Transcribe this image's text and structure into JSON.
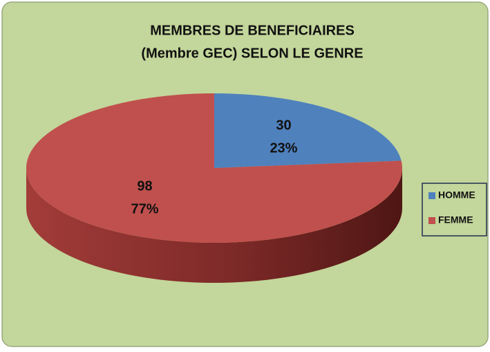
{
  "chart_data": {
    "type": "pie3d",
    "title": [
      "MEMBRES DE BENEFICIAIRES",
      "(Membre GEC) SELON LE GENRE"
    ],
    "categories": [
      "HOMME",
      "FEMME"
    ],
    "values": [
      30,
      98
    ],
    "percent_labels": [
      "23%",
      "77%"
    ],
    "colors": [
      "#4f81bd",
      "#c0504d"
    ],
    "legend": "right"
  }
}
